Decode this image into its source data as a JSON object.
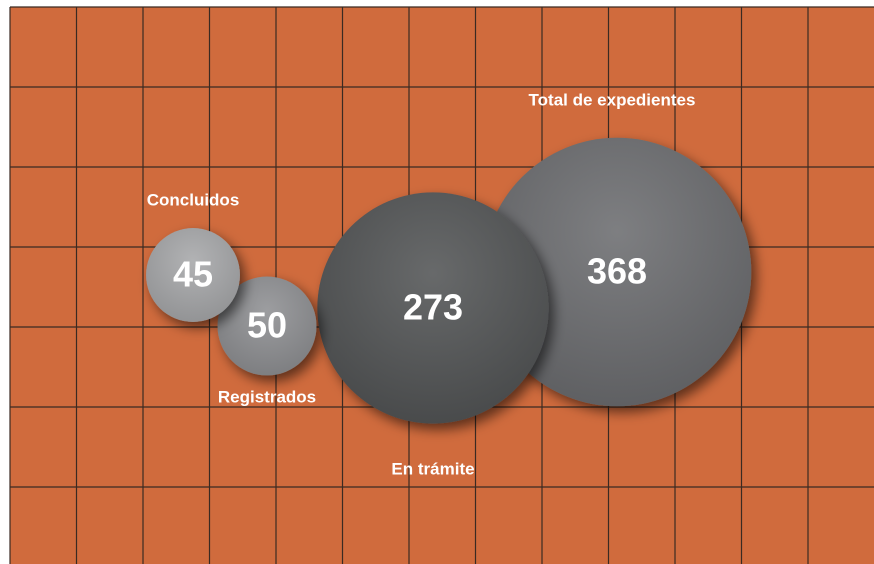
{
  "chart_data": {
    "type": "bubble",
    "categories": [
      "Concluidos",
      "Registrados",
      "En trámite",
      "Total de expedientes"
    ],
    "values": [
      45,
      50,
      273,
      368
    ],
    "colors": [
      "#a7a8aa",
      "#8f9093",
      "#535456",
      "#6c6d6f"
    ]
  }
}
